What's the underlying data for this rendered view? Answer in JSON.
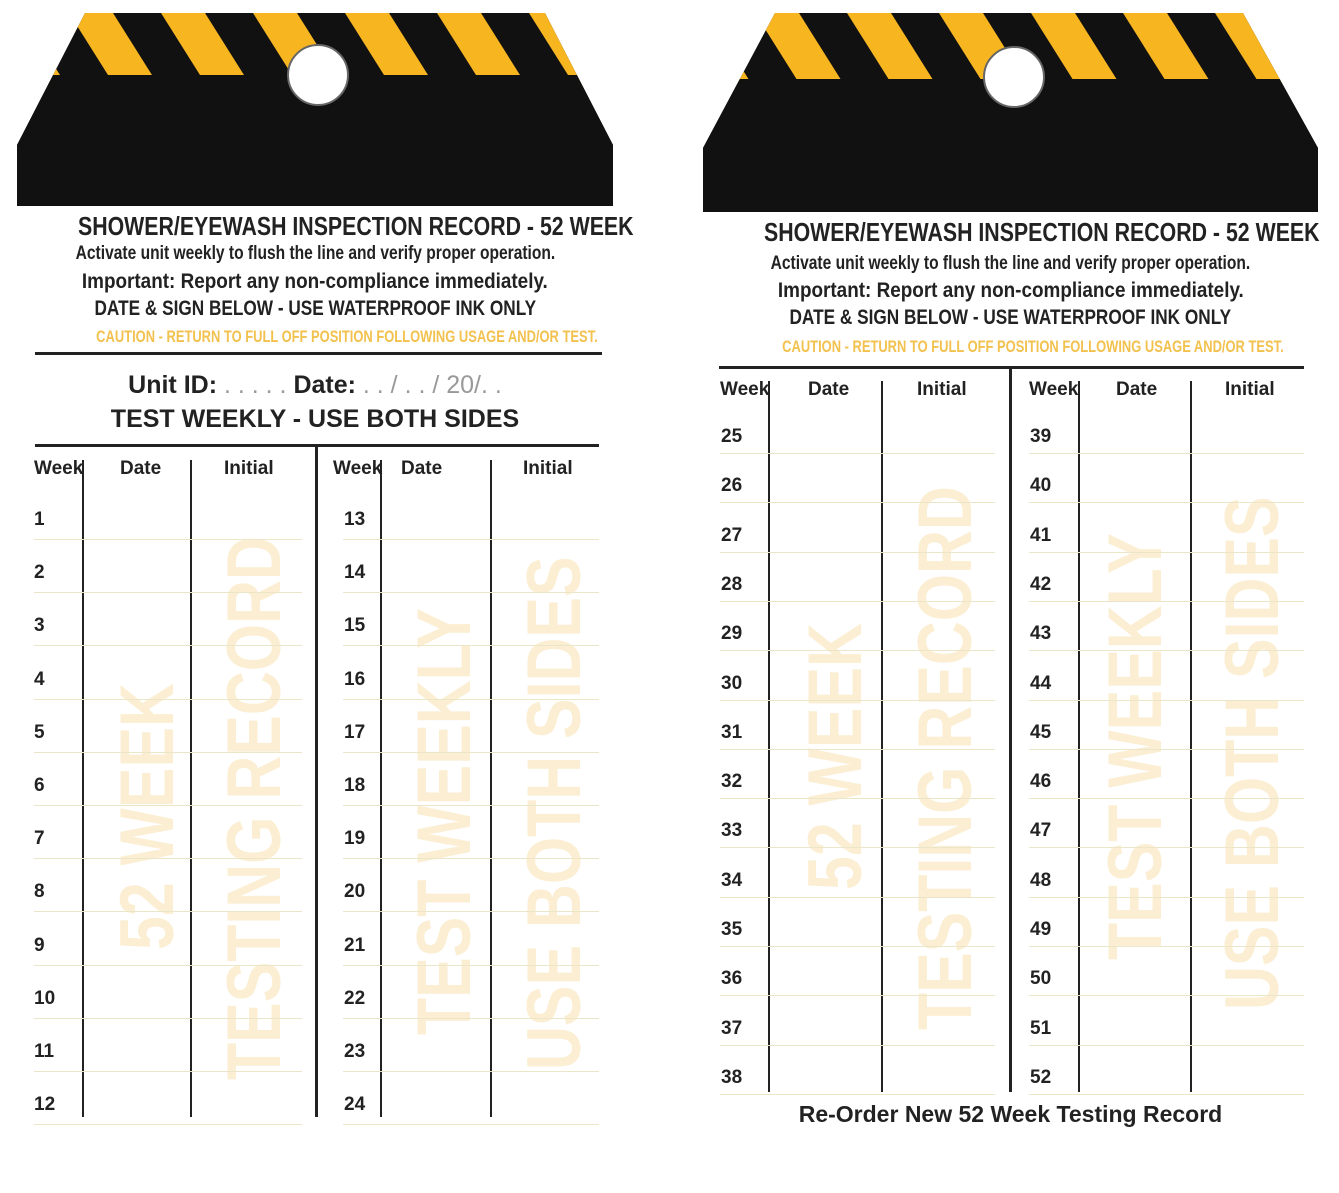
{
  "colors": {
    "stripe": "#f7b520",
    "header_black": "#111111",
    "caution": "#f2c14e",
    "watermark": "#fbeccb"
  },
  "front": {
    "title": "SHOWER/EYEWASH INSPECTION RECORD - 52 WEEK",
    "line1": "Activate unit weekly to flush the line and verify proper operation.",
    "line2": "Important: Report any non-compliance immediately.",
    "line3": "DATE & SIGN BELOW - USE WATERPROOF INK ONLY",
    "caution": "CAUTION - RETURN TO FULL OFF POSITION FOLLOWING USAGE AND/OR TEST.",
    "unit_label": "Unit ID:",
    "unit_dots": " . . . . . ",
    "date_label": "Date:",
    "date_value": " . . / . . / 20/. .",
    "test_weekly": "TEST WEEKLY - USE BOTH SIDES",
    "headers": [
      "Week",
      "Date",
      "Initial",
      "Week",
      "Date",
      "Initial"
    ],
    "weeks_left": [
      "1",
      "2",
      "3",
      "4",
      "5",
      "6",
      "7",
      "8",
      "9",
      "10",
      "11",
      "12"
    ],
    "weeks_right": [
      "13",
      "14",
      "15",
      "16",
      "17",
      "18",
      "19",
      "20",
      "21",
      "22",
      "23",
      "24"
    ],
    "watermarks": [
      "52 WEEK",
      "TESTING RECORD",
      "TEST WEEKLY",
      "USE BOTH SIDES"
    ]
  },
  "back": {
    "title": "SHOWER/EYEWASH INSPECTION RECORD - 52 WEEK",
    "line1": "Activate unit weekly to flush the line and verify proper operation.",
    "line2": "Important: Report any non-compliance immediately.",
    "line3": "DATE & SIGN BELOW - USE WATERPROOF INK ONLY",
    "caution": "CAUTION - RETURN TO FULL OFF POSITION FOLLOWING USAGE AND/OR TEST.",
    "headers": [
      "Week",
      "Date",
      "Initial",
      "Week",
      "Date",
      "Initial"
    ],
    "weeks_left": [
      "25",
      "26",
      "27",
      "28",
      "29",
      "30",
      "31",
      "32",
      "33",
      "34",
      "35",
      "36",
      "37",
      "38"
    ],
    "weeks_right": [
      "39",
      "40",
      "41",
      "42",
      "43",
      "44",
      "45",
      "46",
      "47",
      "48",
      "49",
      "50",
      "51",
      "52"
    ],
    "watermarks": [
      "52 WEEK",
      "TESTING RECORD",
      "TEST WEEKLY",
      "USE BOTH SIDES"
    ],
    "footer": "Re-Order New 52 Week Testing Record"
  }
}
